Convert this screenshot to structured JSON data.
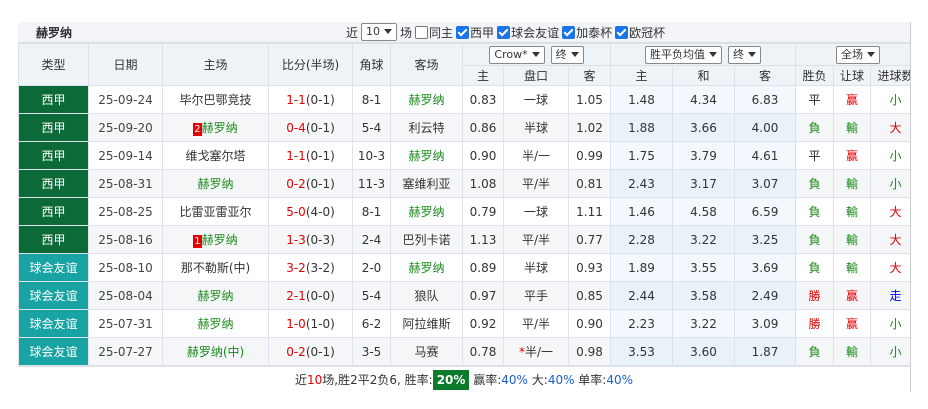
{
  "title": "赫罗纳",
  "filter": {
    "prefix": "近",
    "count": "10",
    "suffix": "场",
    "options": [
      {
        "label": "同主",
        "checked": false
      },
      {
        "label": "西甲",
        "checked": true
      },
      {
        "label": "球会友谊",
        "checked": true
      },
      {
        "label": "加泰杯",
        "checked": true
      },
      {
        "label": "欧冠杯",
        "checked": true
      }
    ]
  },
  "table": {
    "headers": [
      "类型",
      "日期",
      "主场",
      "比分(半场)",
      "角球",
      "客场"
    ],
    "selects": [
      "Crow*",
      "终",
      "胜平负均值",
      "终",
      "全场"
    ],
    "subheaders": [
      "主",
      "盘口",
      "客",
      "主",
      "和",
      "客",
      "胜负",
      "让球",
      "进球数"
    ],
    "type_colors": {
      "西甲": "#0b6a38",
      "球会友谊": "#1aa3a3"
    },
    "colors": {
      "平": "#222222",
      "負": "#1a8a1a",
      "勝": "#e60000",
      "赢": "#e60000",
      "輸": "#1a8a1a",
      "大": "#e60000",
      "小": "#1a8a1a",
      "走": "#0000ee"
    },
    "rows": [
      {
        "type": "西甲",
        "date": "25-09-24",
        "home": "毕尔巴鄂竞技",
        "score": "1-1",
        "half": "(0-1)",
        "corner": "8-1",
        "away": "赫罗纳",
        "ho": "0.83",
        "line": "一球",
        "ao": "1.05",
        "w": "1.48",
        "d": "4.34",
        "l": "6.83",
        "result": "平",
        "handicap": "赢",
        "ou": "小"
      },
      {
        "type": "西甲",
        "date": "25-09-20",
        "rank": "2",
        "home": "赫罗纳",
        "score": "0-4",
        "half": "(0-1)",
        "corner": "5-4",
        "away": "利云特",
        "ho": "0.86",
        "line": "半球",
        "ao": "1.02",
        "w": "1.88",
        "d": "3.66",
        "l": "4.00",
        "result": "負",
        "handicap": "輸",
        "ou": "大"
      },
      {
        "type": "西甲",
        "date": "25-09-14",
        "home": "维戈塞尔塔",
        "score": "1-1",
        "half": "(0-1)",
        "corner": "10-3",
        "away": "赫罗纳",
        "ho": "0.90",
        "line": "半/一",
        "ao": "0.99",
        "w": "1.75",
        "d": "3.79",
        "l": "4.61",
        "result": "平",
        "handicap": "赢",
        "ou": "小"
      },
      {
        "type": "西甲",
        "date": "25-08-31",
        "home": "赫罗纳",
        "score": "0-2",
        "half": "(0-1)",
        "corner": "11-3",
        "away": "塞维利亚",
        "ho": "1.08",
        "line": "平/半",
        "ao": "0.81",
        "w": "2.43",
        "d": "3.17",
        "l": "3.07",
        "result": "負",
        "handicap": "輸",
        "ou": "小"
      },
      {
        "type": "西甲",
        "date": "25-08-25",
        "home": "比雷亚雷亚尔",
        "score": "5-0",
        "half": "(4-0)",
        "corner": "8-1",
        "away": "赫罗纳",
        "ho": "0.79",
        "line": "一球",
        "ao": "1.11",
        "w": "1.46",
        "d": "4.58",
        "l": "6.59",
        "result": "負",
        "handicap": "輸",
        "ou": "大"
      },
      {
        "type": "西甲",
        "date": "25-08-16",
        "rank": "1",
        "home": "赫罗纳",
        "score": "1-3",
        "half": "(0-3)",
        "corner": "2-4",
        "away": "巴列卡诺",
        "ho": "1.13",
        "line": "平/半",
        "ao": "0.77",
        "w": "2.28",
        "d": "3.22",
        "l": "3.25",
        "result": "負",
        "handicap": "輸",
        "ou": "大"
      },
      {
        "type": "球会友谊",
        "date": "25-08-10",
        "home": "那不勒斯(中)",
        "score": "3-2",
        "half": "(3-2)",
        "corner": "2-0",
        "away": "赫罗纳",
        "ho": "0.89",
        "line": "半球",
        "ao": "0.93",
        "w": "1.89",
        "d": "3.55",
        "l": "3.69",
        "result": "負",
        "handicap": "輸",
        "ou": "大"
      },
      {
        "type": "球会友谊",
        "date": "25-08-04",
        "home": "赫罗纳",
        "score": "2-1",
        "half": "(0-0)",
        "corner": "5-4",
        "away": "狼队",
        "ho": "0.97",
        "line": "平手",
        "ao": "0.85",
        "w": "2.44",
        "d": "3.58",
        "l": "2.49",
        "result": "勝",
        "handicap": "赢",
        "ou": "走"
      },
      {
        "type": "球会友谊",
        "date": "25-07-31",
        "home": "赫罗纳",
        "score": "1-0",
        "half": "(1-0)",
        "corner": "6-2",
        "away": "阿拉维斯",
        "ho": "0.92",
        "line": "平/半",
        "ao": "0.90",
        "w": "2.23",
        "d": "3.22",
        "l": "3.09",
        "result": "勝",
        "handicap": "赢",
        "ou": "小"
      },
      {
        "type": "球会友谊",
        "date": "25-07-27",
        "home": "赫罗纳(中)",
        "score": "0-2",
        "half": "(0-1)",
        "corner": "3-5",
        "away": "马赛",
        "ho": "0.78",
        "flag": "*",
        "line": "半/一",
        "ao": "0.98",
        "w": "3.53",
        "d": "3.60",
        "l": "1.87",
        "result": "負",
        "handicap": "輸",
        "ou": "小"
      }
    ]
  },
  "footer": {
    "parts": [
      {
        "text": "近",
        "style": "plain"
      },
      {
        "text": "10",
        "style": "red"
      },
      {
        "text": "场,胜2平2负6, 胜率:",
        "style": "plain"
      },
      {
        "text": "20%",
        "style": "badge"
      },
      {
        "text": " 赢率:",
        "style": "plain"
      },
      {
        "text": "40%",
        "style": "blue"
      },
      {
        "text": " 大:",
        "style": "plain"
      },
      {
        "text": "40%",
        "style": "blue"
      },
      {
        "text": " 单率:",
        "style": "plain"
      },
      {
        "text": "40%",
        "style": "blue"
      }
    ]
  }
}
